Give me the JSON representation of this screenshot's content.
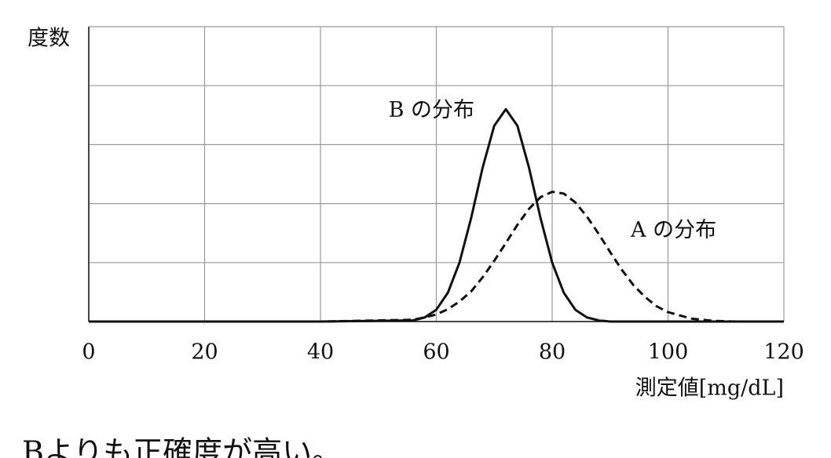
{
  "chart_data": {
    "type": "line",
    "ylabel": "度数",
    "xlabel": "測定値[mg/dL]",
    "caption": "Bよりも正確度が高い。",
    "x": [
      0,
      40,
      56,
      58,
      60,
      62,
      64,
      66,
      68,
      70,
      72,
      74,
      76,
      78,
      80,
      82,
      84,
      86,
      88,
      90,
      92,
      94,
      96,
      98,
      100,
      104,
      108,
      112,
      120
    ],
    "series": [
      {
        "name": "B の分布",
        "color": "#111111",
        "dash": false,
        "values": [
          0,
          0,
          0.02,
          0.07,
          0.2,
          0.49,
          1.0,
          1.75,
          2.61,
          3.32,
          3.6,
          3.32,
          2.61,
          1.75,
          1.0,
          0.49,
          0.2,
          0.07,
          0.02,
          0,
          0,
          0,
          0,
          0,
          0,
          0,
          0,
          0,
          0
        ]
      },
      {
        "name": "A の分布",
        "color": "#111111",
        "dash": true,
        "values": [
          0,
          0,
          0.03,
          0.07,
          0.12,
          0.21,
          0.34,
          0.51,
          0.75,
          1.03,
          1.33,
          1.64,
          1.91,
          2.11,
          2.2,
          2.17,
          2.02,
          1.78,
          1.49,
          1.18,
          0.88,
          0.62,
          0.42,
          0.26,
          0.16,
          0.05,
          0.01,
          0,
          0
        ]
      }
    ],
    "xlim": [
      0,
      120
    ],
    "xticks": [
      0,
      20,
      40,
      60,
      80,
      100,
      120
    ],
    "ylim": [
      0,
      5
    ],
    "yticks": [
      0,
      1,
      2,
      3,
      4,
      5
    ],
    "grid": true
  }
}
